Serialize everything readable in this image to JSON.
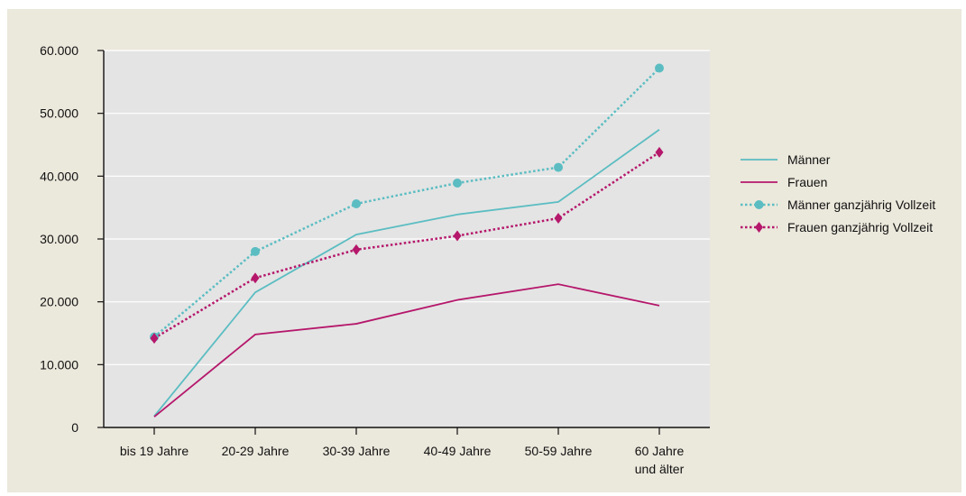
{
  "chart_data": {
    "type": "line",
    "categories": [
      [
        "bis 19 Jahre"
      ],
      [
        "20-29 Jahre"
      ],
      [
        "30-39 Jahre"
      ],
      [
        "40-49 Jahre"
      ],
      [
        "50-59 Jahre"
      ],
      [
        "60 Jahre",
        "und älter"
      ]
    ],
    "y_ticks": [
      "0",
      "10.000",
      "20.000",
      "30.000",
      "40.000",
      "50.000",
      "60.000"
    ],
    "ylim": [
      0,
      60000
    ],
    "grid": true,
    "legend_position": "right",
    "series": [
      {
        "name": "Männer",
        "color": "#5bbdc2",
        "style": "solid",
        "marker": "none",
        "values": [
          1800,
          21500,
          30700,
          33900,
          35900,
          47400
        ]
      },
      {
        "name": "Frauen",
        "color": "#b5176b",
        "style": "solid",
        "marker": "none",
        "values": [
          1700,
          14800,
          16500,
          20300,
          22800,
          19400
        ]
      },
      {
        "name": "Männer ganzjährig Vollzeit",
        "color": "#5bbdc2",
        "style": "dotted",
        "marker": "circle",
        "values": [
          14400,
          28000,
          35600,
          38900,
          41400,
          57200
        ]
      },
      {
        "name": "Frauen ganzjährig Vollzeit",
        "color": "#b5176b",
        "style": "dotted",
        "marker": "diamond",
        "values": [
          14200,
          23800,
          28300,
          30500,
          33300,
          43800
        ]
      }
    ]
  }
}
